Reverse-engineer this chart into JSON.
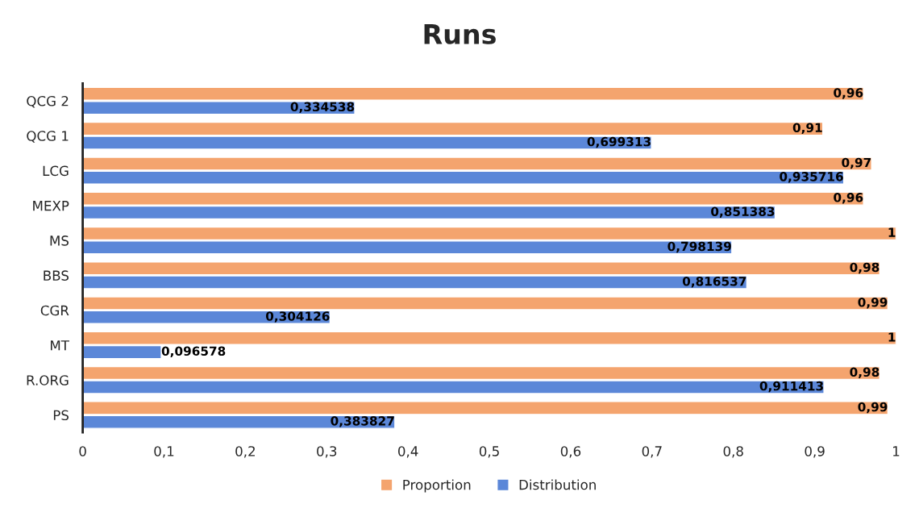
{
  "chart_data": {
    "type": "bar",
    "orientation": "horizontal",
    "title": "Runs",
    "categories": [
      "QCG 2",
      "QCG 1",
      "LCG",
      "MEXP",
      "MS",
      "BBS",
      "CGR",
      "MT",
      "R.ORG",
      "PS"
    ],
    "series": [
      {
        "name": "Proportion",
        "color": "#f4a46e",
        "values": [
          0.96,
          0.91,
          0.97,
          0.96,
          1,
          0.98,
          0.99,
          1,
          0.98,
          0.99
        ],
        "value_labels": [
          "0,96",
          "0,91",
          "0,97",
          "0,96",
          "1",
          "0,98",
          "0,99",
          "1",
          "0,98",
          "0,99"
        ]
      },
      {
        "name": "Distribution",
        "color": "#5b87d8",
        "values": [
          0.334538,
          0.699313,
          0.935716,
          0.851383,
          0.798139,
          0.816537,
          0.304126,
          0.096578,
          0.911413,
          0.383827
        ],
        "value_labels": [
          "0,334538",
          "0,699313",
          "0,935716",
          "0,851383",
          "0,798139",
          "0,816537",
          "0,304126",
          "0,096578",
          "0,911413",
          "0,383827"
        ]
      }
    ],
    "xlim": [
      0,
      1
    ],
    "xticks": [
      0,
      {
        "value": 0.1,
        "label": "0,1"
      },
      {
        "value": 0.2,
        "label": "0,2"
      },
      {
        "value": 0.3,
        "label": "0,3"
      },
      {
        "value": 0.4,
        "label": "0,4"
      },
      {
        "value": 0.5,
        "label": "0,5"
      },
      {
        "value": 0.6,
        "label": "0,6"
      },
      {
        "value": 0.7,
        "label": "0,7"
      },
      {
        "value": 0.8,
        "label": "0,8"
      },
      {
        "value": 0.9,
        "label": "0,9"
      },
      1
    ],
    "grid": false,
    "legend": "bottom"
  }
}
